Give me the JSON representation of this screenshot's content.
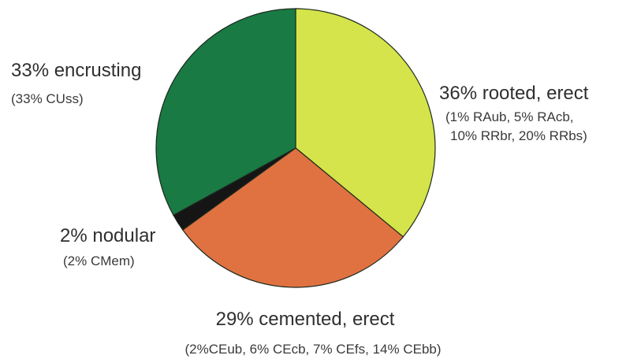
{
  "chart_data": {
    "type": "pie",
    "start_angle_deg": 0,
    "direction": "clockwise",
    "slices": [
      {
        "label": "36% rooted, erect",
        "value": 36,
        "detail": [
          "(1% RAub, 5% RAcb,",
          "10% RRbr, 20% RRbs)"
        ],
        "color": "#d4e44a"
      },
      {
        "label": "29% cemented, erect",
        "value": 29,
        "detail": [
          "(2%CEub, 6% CEcb, 7% CEfs, 14% CEbb)"
        ],
        "color": "#e07242"
      },
      {
        "label": "2% nodular",
        "value": 2,
        "detail": [
          "(2% CMem)"
        ],
        "color": "#151515"
      },
      {
        "label": "33% encrusting",
        "value": 33,
        "detail": [
          "(33% CUss)"
        ],
        "color": "#197a44"
      }
    ]
  }
}
